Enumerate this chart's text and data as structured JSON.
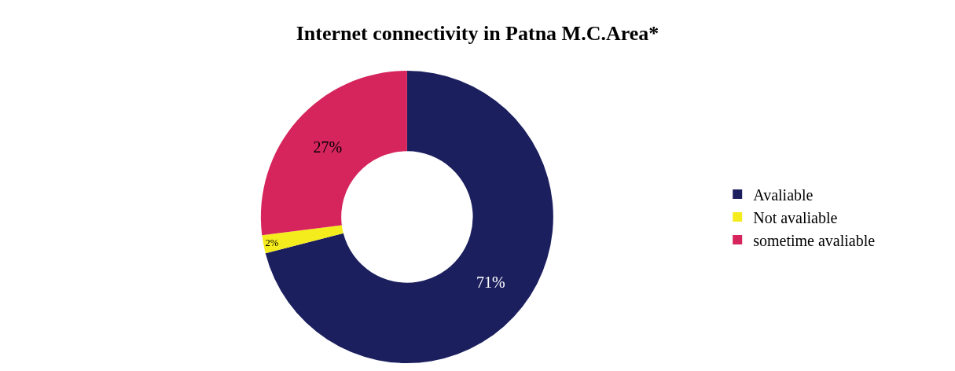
{
  "chart_data": {
    "type": "donut",
    "title": "Internet connectivity in Patna M.C.Area*",
    "categories": [
      "Avaliable",
      "Not avaliable",
      "sometime avaliable"
    ],
    "values": [
      71,
      2,
      27
    ],
    "value_labels": [
      "71%",
      "2%",
      "27%"
    ],
    "colors": [
      "#1b1f5e",
      "#f5ec1e",
      "#d6245c"
    ],
    "legend": "right"
  }
}
